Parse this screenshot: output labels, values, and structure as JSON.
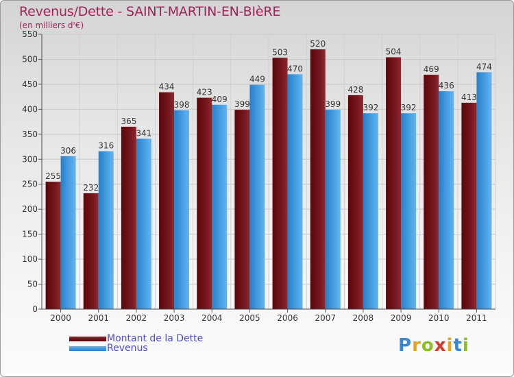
{
  "title": "Revenus/Dette - SAINT-MARTIN-EN-BIèRE",
  "subtitle": "(en milliers d'€)",
  "colors": {
    "dette": "#6e0f14",
    "revenus": "#2f8fd8",
    "title": "#a0255a",
    "legend_text": "#4d4dcc"
  },
  "chart_data": {
    "type": "bar",
    "categories": [
      "2000",
      "2001",
      "2002",
      "2003",
      "2004",
      "2005",
      "2006",
      "2007",
      "2008",
      "2009",
      "2010",
      "2011"
    ],
    "series": [
      {
        "name": "Montant de la Dette",
        "values": [
          255,
          232,
          365,
          434,
          423,
          399,
          503,
          520,
          428,
          504,
          469,
          413
        ]
      },
      {
        "name": "Revenus",
        "values": [
          306,
          316,
          341,
          398,
          409,
          449,
          470,
          399,
          392,
          392,
          436,
          474
        ]
      }
    ],
    "ylim": [
      0,
      550
    ],
    "yticks": [
      0,
      50,
      100,
      150,
      200,
      250,
      300,
      350,
      400,
      450,
      500,
      550
    ],
    "grid": true,
    "legend_position": "bottom-left"
  },
  "legend": {
    "items": [
      {
        "label": "Montant de la Dette"
      },
      {
        "label": "Revenus"
      }
    ]
  },
  "logo": {
    "text": "Proxiti",
    "letter_colors": [
      "#3a86d0",
      "#e8a322",
      "#8cbf26",
      "#d8382a",
      "#e8a322",
      "#3a86d0",
      "#8cbf26"
    ]
  }
}
